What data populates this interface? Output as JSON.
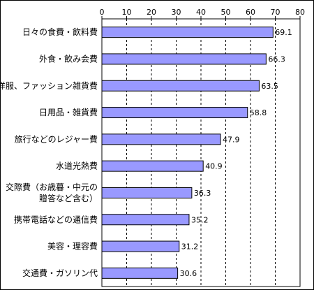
{
  "chart_data": {
    "type": "bar",
    "orientation": "horizontal",
    "title": "",
    "xlabel": "",
    "ylabel": "",
    "xlim": [
      0,
      80
    ],
    "x_ticks": [
      0,
      10,
      20,
      30,
      40,
      50,
      60,
      70,
      80
    ],
    "grid": "vertical dashed",
    "bar_color": "#9999ff",
    "bar_border_color": "#000000",
    "categories": [
      [
        "日々の食費・飲料費"
      ],
      [
        "外食・飲み会費"
      ],
      [
        "洋服、ファッション雑貨費"
      ],
      [
        "日用品・雑貨費"
      ],
      [
        "旅行などのレジャー費"
      ],
      [
        "水道光熱費"
      ],
      [
        "交際費（お歳暮・中元の",
        "贈答など含む）"
      ],
      [
        "携帯電話などの通信費"
      ],
      [
        "美容・理容費"
      ],
      [
        "交通費・ガソリン代"
      ]
    ],
    "values": [
      69.1,
      66.3,
      63.5,
      58.8,
      47.9,
      40.9,
      36.3,
      35.2,
      31.2,
      30.6
    ],
    "value_labels": [
      "69.1",
      "66.3",
      "63.5",
      "58.8",
      "47.9",
      "40.9",
      "36.3",
      "35.2",
      "31.2",
      "30.6"
    ]
  }
}
